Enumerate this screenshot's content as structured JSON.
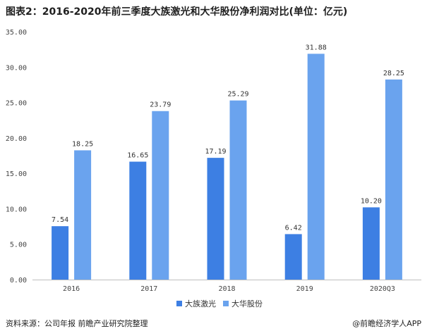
{
  "header": {
    "title": "图表2：2016-2020年前三季度大族激光和大华股份净利润对比(单位：亿元)"
  },
  "chart_data": {
    "type": "bar",
    "categories": [
      "2016",
      "2017",
      "2018",
      "2019",
      "2020Q3"
    ],
    "series": [
      {
        "name": "大族激光",
        "color": "#3d7fe3",
        "values": [
          7.54,
          16.65,
          17.19,
          6.42,
          10.2
        ],
        "labels": [
          "7.54",
          "16.65",
          "17.19",
          "6.42",
          "10.20"
        ]
      },
      {
        "name": "大华股份",
        "color": "#6aa3ee",
        "values": [
          18.25,
          23.79,
          25.29,
          31.88,
          28.25
        ],
        "labels": [
          "18.25",
          "23.79",
          "25.29",
          "31.88",
          "28.25"
        ]
      }
    ],
    "yticks": [
      "0.00",
      "5.00",
      "10.00",
      "15.00",
      "20.00",
      "25.00",
      "30.00",
      "35.00"
    ],
    "ylim": [
      0,
      35
    ],
    "grid": false,
    "legend": "bottom-center"
  },
  "footer": {
    "source": "资料来源：公司年报 前瞻产业研究院整理",
    "credit": "@前瞻经济学人APP"
  }
}
